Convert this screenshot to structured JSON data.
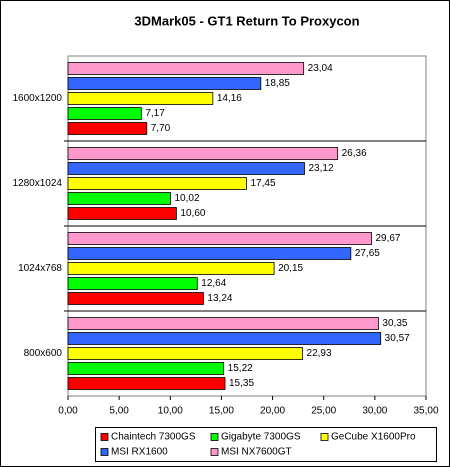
{
  "chart_data": {
    "type": "hbar",
    "title": "3DMark05 - GT1 Return To Proxycon",
    "categories": [
      "1600x1200",
      "1280x1024",
      "1024x768",
      "800x600"
    ],
    "series": [
      {
        "name": "Chaintech 7300GS",
        "color": "#ff0000",
        "values": [
          7.7,
          10.6,
          13.24,
          15.35
        ],
        "value_labels": [
          "7,70",
          "10,60",
          "13,24",
          "15,35"
        ]
      },
      {
        "name": "Gigabyte 7300GS",
        "color": "#00ff00",
        "values": [
          7.17,
          10.02,
          12.64,
          15.22
        ],
        "value_labels": [
          "7,17",
          "10,02",
          "12,64",
          "15,22"
        ]
      },
      {
        "name": "GeCube X1600Pro",
        "color": "#ffff00",
        "values": [
          14.16,
          17.45,
          20.15,
          22.93
        ],
        "value_labels": [
          "14,16",
          "17,45",
          "20,15",
          "22,93"
        ]
      },
      {
        "name": "MSI RX1600",
        "color": "#3366ff",
        "values": [
          18.85,
          23.12,
          27.65,
          30.57
        ],
        "value_labels": [
          "18,85",
          "23,12",
          "27,65",
          "30,57"
        ]
      },
      {
        "name": "MSI NX7600GT",
        "color": "#ff99cc",
        "values": [
          23.04,
          26.36,
          29.67,
          30.35
        ],
        "value_labels": [
          "23,04",
          "26,36",
          "29,67",
          "30,35"
        ]
      }
    ],
    "xlim": [
      0,
      35
    ],
    "xticks": [
      {
        "value": 0,
        "label": "0,00"
      },
      {
        "value": 5,
        "label": "5,00"
      },
      {
        "value": 10,
        "label": "10,00"
      },
      {
        "value": 15,
        "label": "15,00"
      },
      {
        "value": 20,
        "label": "20,00"
      },
      {
        "value": 25,
        "label": "25,00"
      },
      {
        "value": 30,
        "label": "30,00"
      },
      {
        "value": 35,
        "label": "35,00"
      }
    ]
  }
}
